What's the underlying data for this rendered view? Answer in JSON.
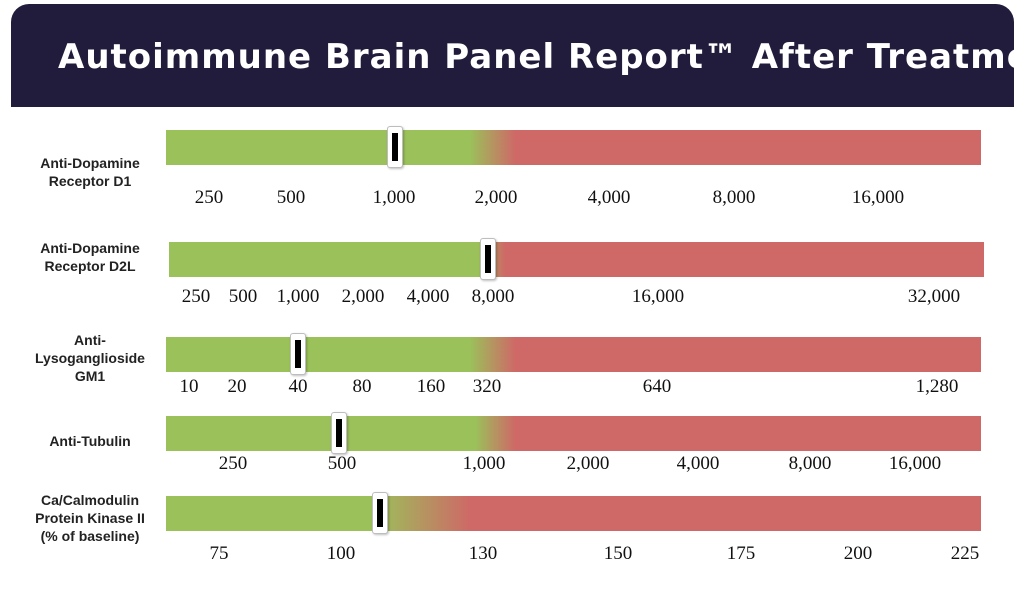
{
  "title": "Autoimmune Brain Panel Report™ After Treatment",
  "colors": {
    "header_bg": "#211c3c",
    "normal": "#9bc15a",
    "elevated": "#ce6967"
  },
  "chart_data": [
    {
      "type": "bar",
      "label": "Anti-Dopamine Receptor D1",
      "ticks": [
        "250",
        "500",
        "1,000",
        "2,000",
        "4,000",
        "8,000",
        "16,000"
      ],
      "value": 1000,
      "threshold": 2000
    },
    {
      "type": "bar",
      "label": "Anti-Dopamine Receptor D2L",
      "ticks": [
        "250",
        "500",
        "1,000",
        "2,000",
        "4,000",
        "8,000",
        "16,000",
        "32,000"
      ],
      "value": 8000,
      "threshold": 8000
    },
    {
      "type": "bar",
      "label": "Anti-Lysoganglioside GM1",
      "ticks": [
        "10",
        "20",
        "40",
        "80",
        "160",
        "320",
        "640",
        "1,280"
      ],
      "value": 40,
      "threshold": 320
    },
    {
      "type": "bar",
      "label": "Anti-Tubulin",
      "ticks": [
        "250",
        "500",
        "1,000",
        "2,000",
        "4,000",
        "8,000",
        "16,000"
      ],
      "value": 500,
      "threshold": 1000
    },
    {
      "type": "bar",
      "label": "Ca/Calmodulin Protein Kinase II (% of baseline)",
      "ticks": [
        "75",
        "100",
        "130",
        "150",
        "175",
        "200",
        "225"
      ],
      "value": 110,
      "threshold": 130
    }
  ]
}
